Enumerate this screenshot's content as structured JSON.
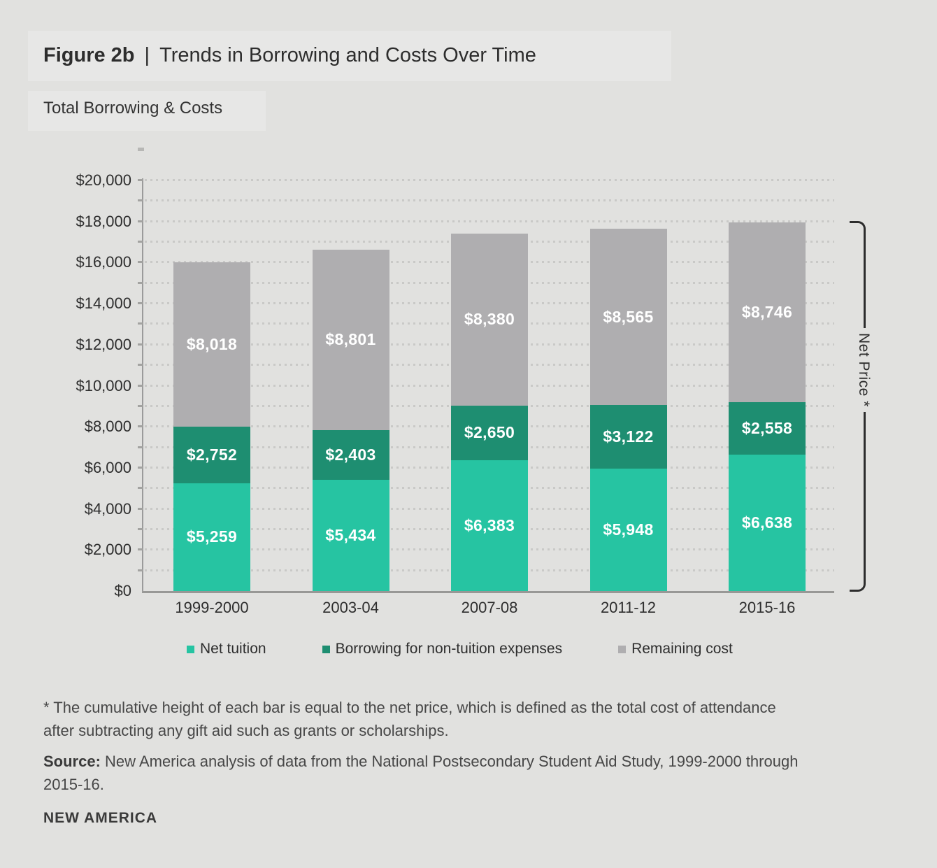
{
  "figure": {
    "label": "Figure 2b",
    "separator": "|",
    "title": "Trends in Borrowing and Costs Over Time",
    "subtitle": "Total Borrowing & Costs"
  },
  "chart_data": {
    "type": "bar",
    "stacked": true,
    "title": "Total Borrowing & Costs",
    "categories": [
      "1999-2000",
      "2003-04",
      "2007-08",
      "2011-12",
      "2015-16"
    ],
    "series": [
      {
        "name": "Net tuition",
        "color": "#26c4a2",
        "values": [
          5259,
          5434,
          6383,
          5948,
          6638
        ],
        "display_values": [
          "$5,259",
          "$5,434",
          "$6,383",
          "$5,948",
          "$6,638"
        ]
      },
      {
        "name": "Borrowing for non-tuition expenses",
        "color": "#1e8e71",
        "values": [
          2752,
          2403,
          2650,
          3122,
          2558
        ],
        "display_values": [
          "$2,752",
          "$2,403",
          "$2,650",
          "$3,122",
          "$2,558"
        ]
      },
      {
        "name": "Remaining cost",
        "color": "#afaeb0",
        "values": [
          8018,
          8801,
          8380,
          8565,
          8746
        ],
        "display_values": [
          "$8,018",
          "$8,801",
          "$8,380",
          "$8,565",
          "$8,746"
        ]
      }
    ],
    "totals": [
      16029,
      16638,
      17413,
      17635,
      17942
    ],
    "ylim": [
      0,
      20000
    ],
    "y_tick_step": 2000,
    "y_tick_labels": [
      "$0",
      "$2,000",
      "$4,000",
      "$6,000",
      "$8,000",
      "$10,000",
      "$12,000",
      "$14,000",
      "$16,000",
      "$18,000",
      "$20,000"
    ],
    "gridline_step": 1000,
    "grid": "dotted horizontal lines every $1,000",
    "legend_position": "bottom",
    "value_label_color": "#ffffff",
    "right_annotation": {
      "label": "Net Price *"
    }
  },
  "footnote": "* The cumulative height of each bar is equal to the net price, which is defined as the total cost of attendance after subtracting any gift aid such as grants or scholarships.",
  "source": {
    "label": "Source:",
    "text": " New America analysis of data from the National Postsecondary Student Aid Study, 1999-2000 through 2015-16."
  },
  "logo": "NEW AMERICA",
  "colors": {
    "background": "#e1e1df",
    "axis": "#9b9b9b",
    "gridline_dots": "#c9c9c7",
    "bracket": "#2d2d2d",
    "text_dark": "#2d2d2d",
    "text_body": "#474747"
  }
}
